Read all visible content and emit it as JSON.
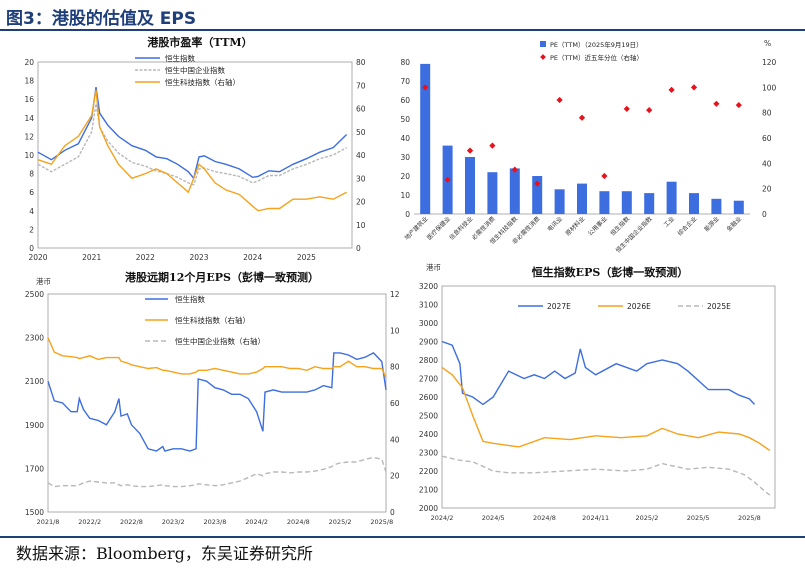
{
  "header": {
    "figure_title": "图3：港股的估值及 EPS"
  },
  "footer": {
    "source": "数据来源：Bloomberg，东吴证券研究所"
  },
  "colors": {
    "blue": "#3d6ee0",
    "orange": "#f5a21c",
    "gray": "#b8b8b8",
    "red": "#e8121d",
    "title": "#1f3f7a"
  },
  "chart_data": [
    {
      "type": "line",
      "title": "港股市盈率（TTM）",
      "x_ticks": [
        "2020",
        "2021",
        "2022",
        "2023",
        "2024",
        "2025"
      ],
      "ylim_left": [
        0,
        20
      ],
      "yticks_left": [
        "0",
        "2",
        "4",
        "6",
        "8",
        "10",
        "12",
        "14",
        "16",
        "18",
        "20"
      ],
      "ylim_right": [
        0,
        80
      ],
      "yticks_right": [
        "0",
        "10",
        "20",
        "30",
        "40",
        "50",
        "60",
        "70",
        "80"
      ],
      "x": [
        2020.0,
        2020.25,
        2020.5,
        2020.75,
        2021.0,
        2021.08,
        2021.15,
        2021.3,
        2021.5,
        2021.75,
        2022.0,
        2022.2,
        2022.4,
        2022.6,
        2022.8,
        2022.9,
        2023.0,
        2023.1,
        2023.3,
        2023.5,
        2023.75,
        2024.0,
        2024.1,
        2024.3,
        2024.5,
        2024.75,
        2025.0,
        2025.25,
        2025.5,
        2025.75
      ],
      "series": [
        {
          "name": "恒生指数",
          "axis": "left",
          "values": [
            10.3,
            9.5,
            10.5,
            11.2,
            14.0,
            17.3,
            14.5,
            13.2,
            12.0,
            11.0,
            10.5,
            9.8,
            9.6,
            9.0,
            8.2,
            7.5,
            9.8,
            9.9,
            9.3,
            9.0,
            8.5,
            7.6,
            7.7,
            8.3,
            8.2,
            9.0,
            9.6,
            10.3,
            10.8,
            12.2
          ]
        },
        {
          "name": "恒生中国企业指数",
          "axis": "left",
          "values": [
            9.0,
            8.2,
            9.0,
            9.8,
            12.5,
            15.5,
            13.0,
            11.5,
            10.2,
            9.2,
            8.8,
            8.3,
            8.0,
            7.6,
            7.0,
            6.8,
            8.5,
            8.6,
            8.2,
            8.0,
            7.7,
            7.0,
            7.2,
            7.8,
            7.8,
            8.5,
            9.0,
            9.6,
            10.0,
            10.8
          ]
        },
        {
          "name": "恒生科技指数（右轴）",
          "axis": "right",
          "values": [
            38,
            36,
            44,
            48,
            57,
            68,
            52,
            44,
            36,
            30,
            32,
            34,
            32,
            28,
            24,
            30,
            36,
            34,
            28,
            25,
            23,
            18,
            16,
            17,
            17,
            21,
            21,
            22,
            21,
            24
          ]
        }
      ]
    },
    {
      "type": "bar",
      "legend": [
        "PE（TTM）（2025年9月19日）",
        "PE（TTM）近五年分位（右轴）"
      ],
      "right_unit": "%",
      "ylim_left": [
        0,
        80
      ],
      "yticks_left": [
        "0",
        "10",
        "20",
        "30",
        "40",
        "50",
        "60",
        "70",
        "80"
      ],
      "ylim_right": [
        0,
        120
      ],
      "yticks_right": [
        "0",
        "20",
        "40",
        "60",
        "80",
        "100",
        "120"
      ],
      "categories": [
        "地产建筑业",
        "医疗保健业",
        "信息科技业",
        "必需性消费",
        "恒生科技指数",
        "非必需性消费",
        "电讯业",
        "原材料业",
        "公用事业",
        "恒生指数",
        "恒生中国企业指数",
        "工业",
        "综合企业",
        "能源业",
        "金融业"
      ],
      "series": [
        {
          "name": "PE（TTM）（2025年9月19日）",
          "axis": "left",
          "values": [
            79,
            36,
            30,
            22,
            24,
            20,
            13,
            16,
            12,
            12,
            11,
            17,
            11,
            8,
            7
          ]
        },
        {
          "name": "PE（TTM）近五年分位（右轴）",
          "axis": "right",
          "values": [
            100,
            27,
            50,
            54,
            35,
            24,
            90,
            76,
            30,
            83,
            82,
            98,
            100,
            87,
            86
          ]
        }
      ]
    },
    {
      "type": "line",
      "title": "港股远期12个月EPS（彭博一致预测）",
      "unit": "港币",
      "x_ticks": [
        "2021/8",
        "2022/2",
        "2022/8",
        "2023/2",
        "2023/8",
        "2024/2",
        "2024/8",
        "2025/2",
        "2025/8"
      ],
      "ylim_left": [
        1500,
        2500
      ],
      "yticks_left": [
        "1500",
        "1700",
        "1900",
        "2100",
        "2300",
        "2500"
      ],
      "ylim_right": [
        0,
        1200
      ],
      "yticks_right": [
        "0",
        "200",
        "400",
        "600",
        "800",
        "1000",
        "1200"
      ],
      "x": [
        0,
        0.15,
        0.35,
        0.55,
        0.7,
        0.75,
        0.85,
        1.0,
        1.2,
        1.4,
        1.6,
        1.7,
        1.75,
        1.9,
        2.0,
        2.2,
        2.4,
        2.6,
        2.75,
        2.8,
        3.0,
        3.2,
        3.4,
        3.55,
        3.6,
        3.8,
        4.0,
        4.2,
        4.4,
        4.6,
        4.8,
        5.0,
        5.15,
        5.2,
        5.4,
        5.6,
        5.8,
        6.0,
        6.2,
        6.4,
        6.6,
        6.8,
        6.85,
        7.0,
        7.2,
        7.4,
        7.6,
        7.8,
        8.0,
        8.1
      ],
      "series": [
        {
          "name": "恒生指数",
          "axis": "left",
          "values": [
            2100,
            2010,
            2000,
            1960,
            1960,
            2020,
            1970,
            1930,
            1920,
            1900,
            1960,
            2020,
            1940,
            1950,
            1900,
            1860,
            1790,
            1780,
            1800,
            1780,
            1790,
            1790,
            1780,
            1790,
            2110,
            2100,
            2070,
            2060,
            2040,
            2040,
            2020,
            1960,
            1870,
            2050,
            2060,
            2050,
            2050,
            2050,
            2050,
            2060,
            2080,
            2070,
            2230,
            2230,
            2220,
            2200,
            2210,
            2230,
            2190,
            2060
          ]
        },
        {
          "name": "恒生科技指数（右轴）",
          "axis": "right",
          "values": [
            960,
            880,
            860,
            855,
            850,
            845,
            850,
            860,
            840,
            850,
            850,
            850,
            830,
            820,
            810,
            800,
            790,
            795,
            780,
            780,
            770,
            760,
            760,
            770,
            780,
            780,
            790,
            780,
            770,
            760,
            760,
            770,
            790,
            800,
            800,
            800,
            790,
            790,
            780,
            800,
            790,
            790,
            800,
            800,
            830,
            800,
            800,
            790,
            790,
            740
          ]
        },
        {
          "name": "恒生中国企业指数（右轴）",
          "axis": "right",
          "values": [
            160,
            140,
            145,
            145,
            145,
            150,
            160,
            170,
            165,
            160,
            160,
            150,
            145,
            150,
            145,
            140,
            140,
            145,
            150,
            145,
            140,
            140,
            145,
            150,
            155,
            150,
            145,
            150,
            160,
            170,
            190,
            210,
            200,
            210,
            220,
            220,
            215,
            220,
            220,
            225,
            235,
            250,
            260,
            270,
            275,
            275,
            290,
            300,
            290,
            220
          ]
        }
      ]
    },
    {
      "type": "line",
      "title": "恒生指数EPS（彭博一致预测）",
      "unit": "港币",
      "x_ticks": [
        "2024/2",
        "2024/5",
        "2024/8",
        "2024/11",
        "2025/2",
        "2025/5",
        "2025/8"
      ],
      "ylim": [
        2000,
        3200
      ],
      "yticks": [
        "2000",
        "2100",
        "2200",
        "2300",
        "2400",
        "2500",
        "2600",
        "2700",
        "2800",
        "2900",
        "3000",
        "3100",
        "3200"
      ],
      "series": [
        {
          "name": "2027E",
          "x": [
            0,
            0.2,
            0.35,
            0.4,
            0.6,
            0.8,
            1.0,
            1.3,
            1.6,
            1.8,
            2.0,
            2.2,
            2.4,
            2.6,
            2.7,
            2.8,
            3.0,
            3.4,
            3.8,
            4.0,
            4.3,
            4.6,
            4.8,
            5.2,
            5.6,
            5.8,
            6.0,
            6.1
          ],
          "values": [
            2900,
            2880,
            2780,
            2620,
            2600,
            2560,
            2600,
            2740,
            2700,
            2720,
            2700,
            2740,
            2700,
            2730,
            2860,
            2760,
            2720,
            2780,
            2740,
            2780,
            2800,
            2780,
            2740,
            2640,
            2640,
            2610,
            2590,
            2560
          ]
        },
        {
          "name": "2026E",
          "x": [
            0,
            0.2,
            0.4,
            0.6,
            0.8,
            1.0,
            1.5,
            2.0,
            2.5,
            3.0,
            3.5,
            4.0,
            4.3,
            4.6,
            5.0,
            5.4,
            5.8,
            6.0,
            6.2,
            6.4
          ],
          "values": [
            2760,
            2720,
            2650,
            2500,
            2360,
            2350,
            2330,
            2380,
            2370,
            2390,
            2380,
            2390,
            2430,
            2400,
            2380,
            2410,
            2400,
            2380,
            2350,
            2310
          ]
        },
        {
          "name": "2025E",
          "x": [
            0,
            0.3,
            0.6,
            1.0,
            1.3,
            1.8,
            2.4,
            3.0,
            3.6,
            4.0,
            4.3,
            4.8,
            5.2,
            5.6,
            5.9,
            6.1,
            6.3,
            6.4
          ],
          "values": [
            2280,
            2260,
            2250,
            2200,
            2190,
            2190,
            2200,
            2210,
            2200,
            2210,
            2240,
            2210,
            2220,
            2210,
            2180,
            2140,
            2090,
            2070
          ]
        }
      ]
    }
  ]
}
